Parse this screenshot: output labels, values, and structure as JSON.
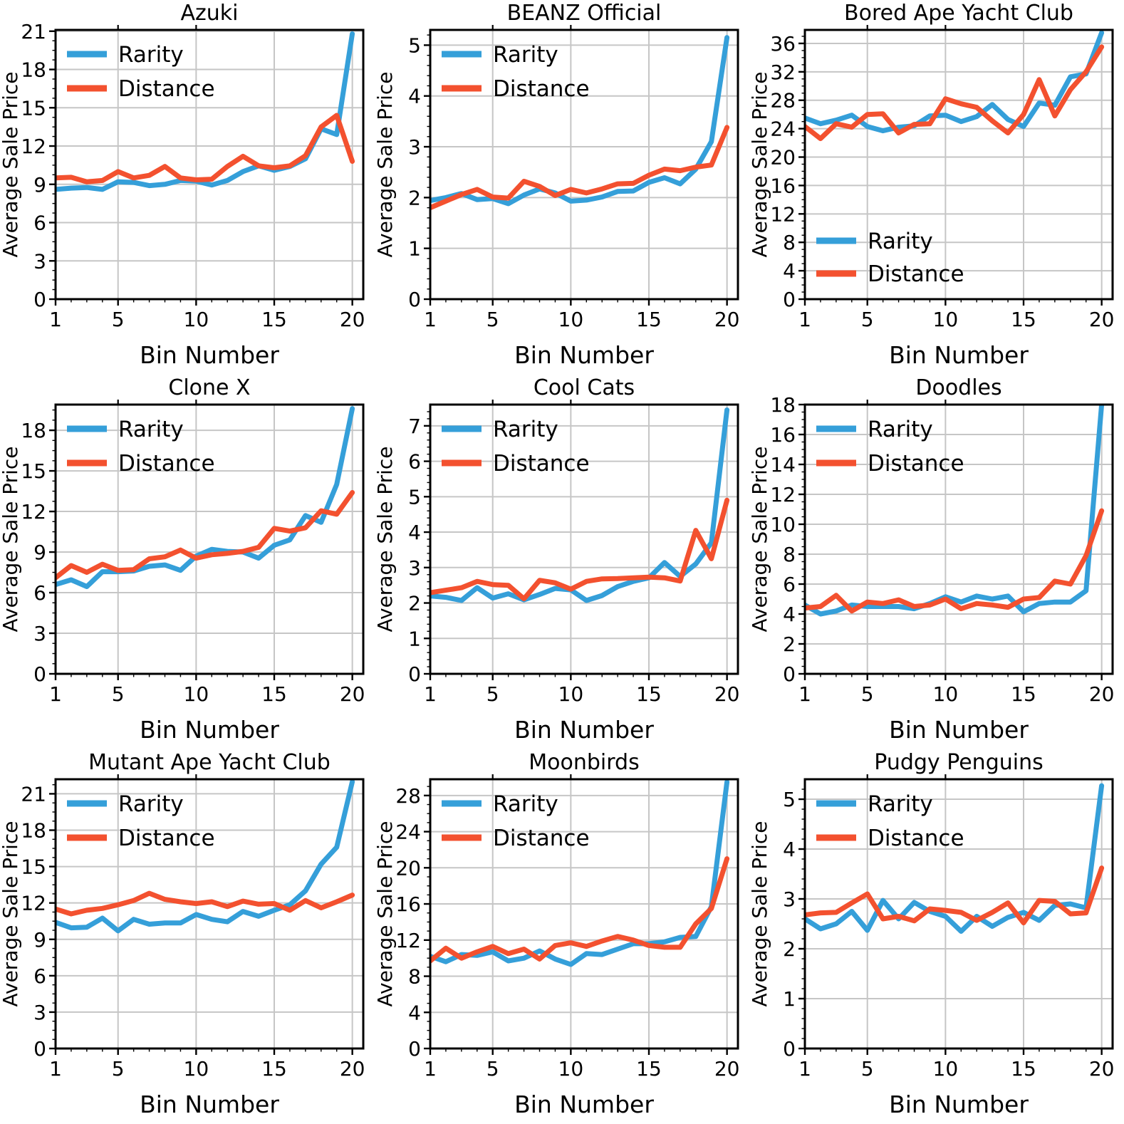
{
  "page": {
    "background": "#ffffff"
  },
  "colors": {
    "rarity": "#359FD9",
    "distance": "#F3512F",
    "grid": "#C6C6C6",
    "spine": "#000000",
    "text": "#000000"
  },
  "shared": {
    "xlabel": "Bin Number",
    "ylabel": "Average Sale Price",
    "x": [
      1,
      2,
      3,
      4,
      5,
      6,
      7,
      8,
      9,
      10,
      11,
      12,
      13,
      14,
      15,
      16,
      17,
      18,
      19,
      20
    ],
    "x_ticks": [
      1,
      5,
      10,
      15,
      20
    ],
    "x_top_ticks": [
      5,
      10
    ],
    "xlim": [
      1,
      20.7
    ],
    "legend_labels": [
      "Rarity",
      "Distance"
    ]
  },
  "chart_data": [
    {
      "type": "line",
      "title": "Azuki",
      "xlabel": "Bin Number",
      "ylabel": "Average Sale Price",
      "legend_position": "upper left",
      "ylim": [
        0,
        21.1
      ],
      "y_ticks": [
        0,
        3,
        6,
        9,
        12,
        15,
        18,
        21
      ],
      "grid": true,
      "series": [
        {
          "name": "Rarity",
          "values": [
            8.6,
            8.7,
            8.75,
            8.6,
            9.2,
            9.15,
            8.9,
            9.0,
            9.3,
            9.25,
            8.95,
            9.3,
            10.0,
            10.45,
            10.1,
            10.4,
            11.0,
            13.35,
            12.9,
            20.8
          ]
        },
        {
          "name": "Distance",
          "values": [
            9.5,
            9.55,
            9.2,
            9.3,
            10.0,
            9.5,
            9.7,
            10.4,
            9.5,
            9.35,
            9.4,
            10.4,
            11.2,
            10.45,
            10.3,
            10.45,
            11.25,
            13.5,
            14.4,
            10.8
          ]
        }
      ]
    },
    {
      "type": "line",
      "title": "BEANZ Official",
      "xlabel": "Bin Number",
      "ylabel": "Average Sale Price",
      "legend_position": "upper left",
      "ylim": [
        0,
        5.3
      ],
      "y_ticks": [
        0,
        1,
        2,
        3,
        4,
        5
      ],
      "grid": true,
      "series": [
        {
          "name": "Rarity",
          "values": [
            1.94,
            2.0,
            2.08,
            1.96,
            1.98,
            1.88,
            2.05,
            2.17,
            2.09,
            1.93,
            1.95,
            2.01,
            2.12,
            2.13,
            2.3,
            2.39,
            2.27,
            2.56,
            3.1,
            5.15
          ]
        },
        {
          "name": "Distance",
          "values": [
            1.8,
            1.93,
            2.06,
            2.16,
            2.01,
            1.99,
            2.32,
            2.22,
            2.04,
            2.16,
            2.09,
            2.17,
            2.27,
            2.28,
            2.44,
            2.56,
            2.53,
            2.6,
            2.64,
            3.38
          ]
        }
      ]
    },
    {
      "type": "line",
      "title": "Bored Ape Yacht Club",
      "xlabel": "Bin Number",
      "ylabel": "Average Sale Price",
      "legend_position": "lower left",
      "ylim": [
        0,
        37.9
      ],
      "y_ticks": [
        0,
        4,
        8,
        12,
        16,
        20,
        24,
        28,
        32,
        36
      ],
      "grid": true,
      "series": [
        {
          "name": "Rarity",
          "values": [
            25.5,
            24.7,
            25.2,
            25.9,
            24.3,
            23.7,
            24.2,
            24.4,
            25.8,
            25.9,
            25.0,
            25.7,
            27.4,
            25.3,
            24.3,
            27.6,
            27.3,
            31.3,
            31.7,
            37.5
          ]
        },
        {
          "name": "Distance",
          "values": [
            24.3,
            22.6,
            24.7,
            24.2,
            26.0,
            26.1,
            23.4,
            24.6,
            24.7,
            28.2,
            27.5,
            27.0,
            25.1,
            23.4,
            26.0,
            30.9,
            25.8,
            29.5,
            32.0,
            35.5
          ]
        }
      ]
    },
    {
      "type": "line",
      "title": "Clone X",
      "xlabel": "Bin Number",
      "ylabel": "Average Sale Price",
      "legend_position": "upper left",
      "ylim": [
        0,
        19.9
      ],
      "y_ticks": [
        0,
        3,
        6,
        9,
        12,
        15,
        18
      ],
      "grid": true,
      "series": [
        {
          "name": "Rarity",
          "values": [
            6.6,
            6.95,
            6.45,
            7.55,
            7.55,
            7.6,
            7.95,
            8.05,
            7.65,
            8.7,
            9.2,
            9.05,
            9.0,
            8.55,
            9.5,
            9.9,
            11.7,
            11.2,
            14.0,
            19.6
          ]
        },
        {
          "name": "Distance",
          "values": [
            7.1,
            8.0,
            7.5,
            8.1,
            7.65,
            7.7,
            8.5,
            8.65,
            9.15,
            8.55,
            8.8,
            8.9,
            9.05,
            9.35,
            10.75,
            10.55,
            10.8,
            12.05,
            11.8,
            13.4
          ]
        }
      ]
    },
    {
      "type": "line",
      "title": "Cool Cats",
      "xlabel": "Bin Number",
      "ylabel": "Average Sale Price",
      "legend_position": "upper left",
      "ylim": [
        0,
        7.6
      ],
      "y_ticks": [
        0,
        1,
        2,
        3,
        4,
        5,
        6,
        7
      ],
      "grid": true,
      "series": [
        {
          "name": "Rarity",
          "values": [
            2.2,
            2.16,
            2.07,
            2.43,
            2.14,
            2.26,
            2.09,
            2.24,
            2.41,
            2.37,
            2.07,
            2.21,
            2.46,
            2.61,
            2.71,
            3.14,
            2.75,
            3.1,
            3.7,
            7.45
          ]
        },
        {
          "name": "Distance",
          "values": [
            2.29,
            2.36,
            2.43,
            2.61,
            2.52,
            2.5,
            2.12,
            2.64,
            2.57,
            2.39,
            2.61,
            2.68,
            2.69,
            2.71,
            2.73,
            2.71,
            2.62,
            4.05,
            3.25,
            4.9
          ]
        }
      ]
    },
    {
      "type": "line",
      "title": "Doodles",
      "xlabel": "Bin Number",
      "ylabel": "Average Sale Price",
      "legend_position": "upper left",
      "ylim": [
        0,
        18.0
      ],
      "y_ticks": [
        0,
        2,
        4,
        6,
        8,
        10,
        12,
        14,
        16,
        18
      ],
      "grid": true,
      "series": [
        {
          "name": "Rarity",
          "values": [
            4.6,
            4.0,
            4.2,
            4.6,
            4.5,
            4.5,
            4.5,
            4.35,
            4.7,
            5.15,
            4.8,
            5.2,
            5.0,
            5.2,
            4.15,
            4.7,
            4.8,
            4.8,
            5.55,
            18.0
          ]
        },
        {
          "name": "Distance",
          "values": [
            4.4,
            4.5,
            5.25,
            4.2,
            4.8,
            4.7,
            4.95,
            4.5,
            4.6,
            5.0,
            4.35,
            4.7,
            4.6,
            4.45,
            5.0,
            5.1,
            6.2,
            6.0,
            7.9,
            10.9
          ]
        }
      ]
    },
    {
      "type": "line",
      "title": "Mutant Ape Yacht Club",
      "xlabel": "Bin Number",
      "ylabel": "Average Sale Price",
      "legend_position": "upper left",
      "ylim": [
        0,
        22.2
      ],
      "y_ticks": [
        0,
        3,
        6,
        9,
        12,
        15,
        18,
        21
      ],
      "grid": true,
      "series": [
        {
          "name": "Rarity",
          "values": [
            10.4,
            9.95,
            10.0,
            10.75,
            9.7,
            10.65,
            10.25,
            10.35,
            10.35,
            11.05,
            10.65,
            10.45,
            11.3,
            10.9,
            11.4,
            11.85,
            13.0,
            15.2,
            16.6,
            22.0
          ]
        },
        {
          "name": "Distance",
          "values": [
            11.5,
            11.1,
            11.4,
            11.55,
            11.85,
            12.2,
            12.8,
            12.3,
            12.1,
            11.95,
            12.1,
            11.7,
            12.15,
            11.9,
            11.95,
            11.4,
            12.2,
            11.6,
            12.1,
            12.65
          ]
        }
      ]
    },
    {
      "type": "line",
      "title": "Moonbirds",
      "xlabel": "Bin Number",
      "ylabel": "Average Sale Price",
      "legend_position": "upper left",
      "ylim": [
        0,
        29.8
      ],
      "y_ticks": [
        0,
        4,
        8,
        12,
        16,
        20,
        24,
        28
      ],
      "grid": true,
      "series": [
        {
          "name": "Rarity",
          "values": [
            10.2,
            9.6,
            10.4,
            10.3,
            10.7,
            9.7,
            10.0,
            10.8,
            9.9,
            9.3,
            10.5,
            10.4,
            11.0,
            11.6,
            11.6,
            11.8,
            12.3,
            12.4,
            15.7,
            29.5
          ]
        },
        {
          "name": "Distance",
          "values": [
            9.7,
            11.1,
            10.0,
            10.7,
            11.3,
            10.5,
            11.0,
            9.9,
            11.4,
            11.7,
            11.3,
            11.9,
            12.4,
            12.0,
            11.4,
            11.2,
            11.2,
            13.8,
            15.5,
            21.0
          ]
        }
      ]
    },
    {
      "type": "line",
      "title": "Pudgy Penguins",
      "xlabel": "Bin Number",
      "ylabel": "Average Sale Price",
      "legend_position": "upper left",
      "ylim": [
        0,
        5.4
      ],
      "y_ticks": [
        0,
        1,
        2,
        3,
        4,
        5
      ],
      "grid": true,
      "series": [
        {
          "name": "Rarity",
          "values": [
            2.6,
            2.4,
            2.5,
            2.75,
            2.37,
            2.97,
            2.6,
            2.93,
            2.75,
            2.65,
            2.35,
            2.65,
            2.45,
            2.63,
            2.73,
            2.57,
            2.87,
            2.9,
            2.82,
            5.27
          ]
        },
        {
          "name": "Distance",
          "values": [
            2.68,
            2.72,
            2.73,
            2.92,
            3.1,
            2.6,
            2.65,
            2.56,
            2.8,
            2.77,
            2.73,
            2.57,
            2.73,
            2.92,
            2.52,
            2.97,
            2.95,
            2.7,
            2.72,
            3.62
          ]
        }
      ]
    }
  ]
}
